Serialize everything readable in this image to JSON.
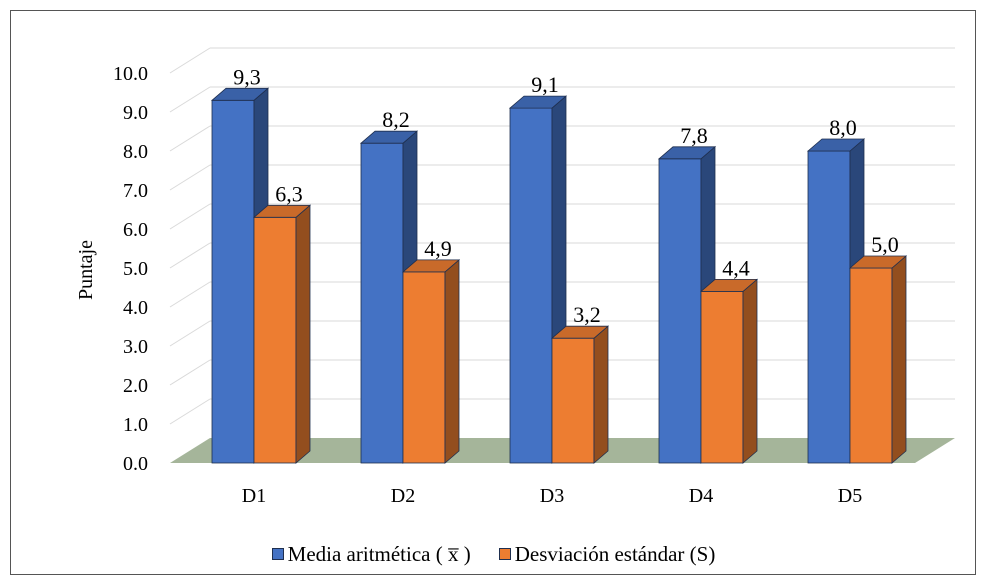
{
  "chart_data": {
    "type": "bar",
    "categories": [
      "D1",
      "D2",
      "D3",
      "D4",
      "D5"
    ],
    "series": [
      {
        "name": "Media aritmética ( x̅ )",
        "values": [
          9.3,
          8.2,
          9.1,
          7.8,
          8.0
        ],
        "labels": [
          "9,3",
          "8,2",
          "9,1",
          "7,8",
          "8,0"
        ],
        "color": "#4472C4"
      },
      {
        "name": "Desviación estándar (S)",
        "values": [
          6.3,
          4.9,
          3.2,
          4.4,
          5.0
        ],
        "labels": [
          "6,3",
          "4,9",
          "3,2",
          "4,4",
          "5,0"
        ],
        "color": "#ED7D31"
      }
    ],
    "ylabel": "Puntaje",
    "xlabel": "",
    "ylim": [
      0,
      10
    ],
    "yticks": [
      "0.0",
      "1.0",
      "2.0",
      "3.0",
      "4.0",
      "5.0",
      "6.0",
      "7.0",
      "8.0",
      "9.0",
      "10.0"
    ],
    "grid": true,
    "legend_position": "bottom",
    "style": "3d-clustered-column",
    "floor_color": "#A5B59A"
  }
}
